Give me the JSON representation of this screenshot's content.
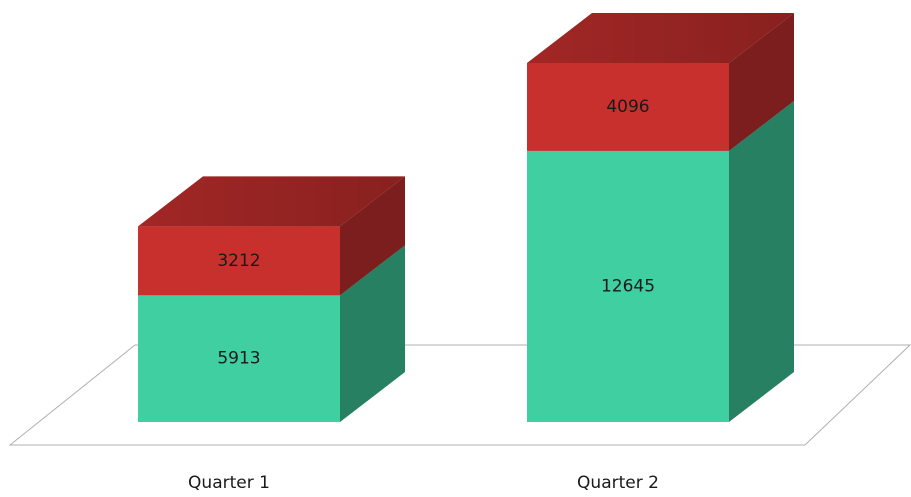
{
  "chart_data": {
    "type": "bar",
    "stacked": true,
    "categories": [
      "Quarter 1",
      "Quarter 2"
    ],
    "series": [
      {
        "color": "#40cfa0",
        "values": [
          5913,
          12645
        ]
      },
      {
        "color": "#c8302e",
        "values": [
          3212,
          4096
        ]
      }
    ]
  }
}
